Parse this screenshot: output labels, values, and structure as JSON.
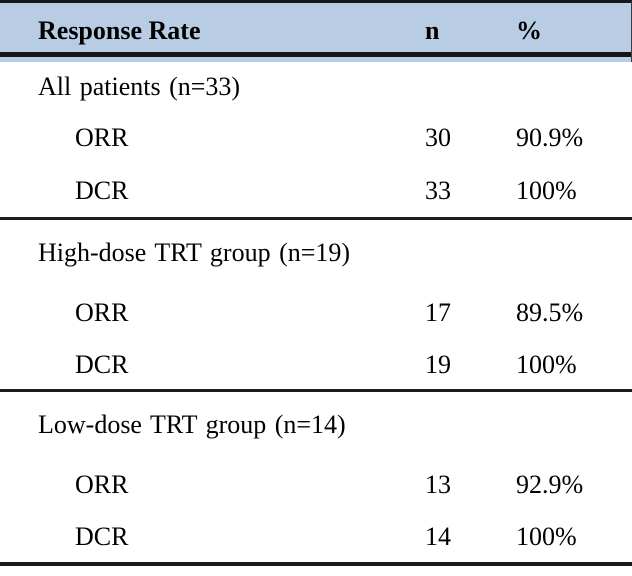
{
  "table": {
    "header": {
      "response_rate": "Response Rate",
      "n": "n",
      "percent": "%"
    },
    "sections": [
      {
        "group": "All patients (n=33)",
        "rows": [
          {
            "label": "ORR",
            "n": "30",
            "pct": "90.9%"
          },
          {
            "label": "DCR",
            "n": "33",
            "pct": "100%"
          }
        ]
      },
      {
        "group": "High-dose TRT group (n=19)",
        "rows": [
          {
            "label": "ORR",
            "n": "17",
            "pct": "89.5%"
          },
          {
            "label": "DCR",
            "n": "19",
            "pct": "100%"
          }
        ]
      },
      {
        "group": "Low-dose TRT group (n=14)",
        "rows": [
          {
            "label": "ORR",
            "n": "13",
            "pct": "92.9%"
          },
          {
            "label": "DCR",
            "n": "14",
            "pct": "100%"
          }
        ]
      }
    ],
    "colors": {
      "header_bg": "#b8cce4",
      "rule_line": "#1b1b1b",
      "text": "#000000"
    }
  },
  "chart_data": {
    "type": "table",
    "columns": [
      "Response Rate",
      "n",
      "%"
    ],
    "rows": [
      [
        "All patients (n=33)",
        "",
        ""
      ],
      [
        "ORR",
        "30",
        "90.9%"
      ],
      [
        "DCR",
        "33",
        "100%"
      ],
      [
        "High-dose TRT group (n=19)",
        "",
        ""
      ],
      [
        "ORR",
        "17",
        "89.5%"
      ],
      [
        "DCR",
        "19",
        "100%"
      ],
      [
        "Low-dose TRT group (n=14)",
        "",
        ""
      ],
      [
        "ORR",
        "13",
        "92.9%"
      ],
      [
        "DCR",
        "14",
        "100%"
      ]
    ]
  }
}
